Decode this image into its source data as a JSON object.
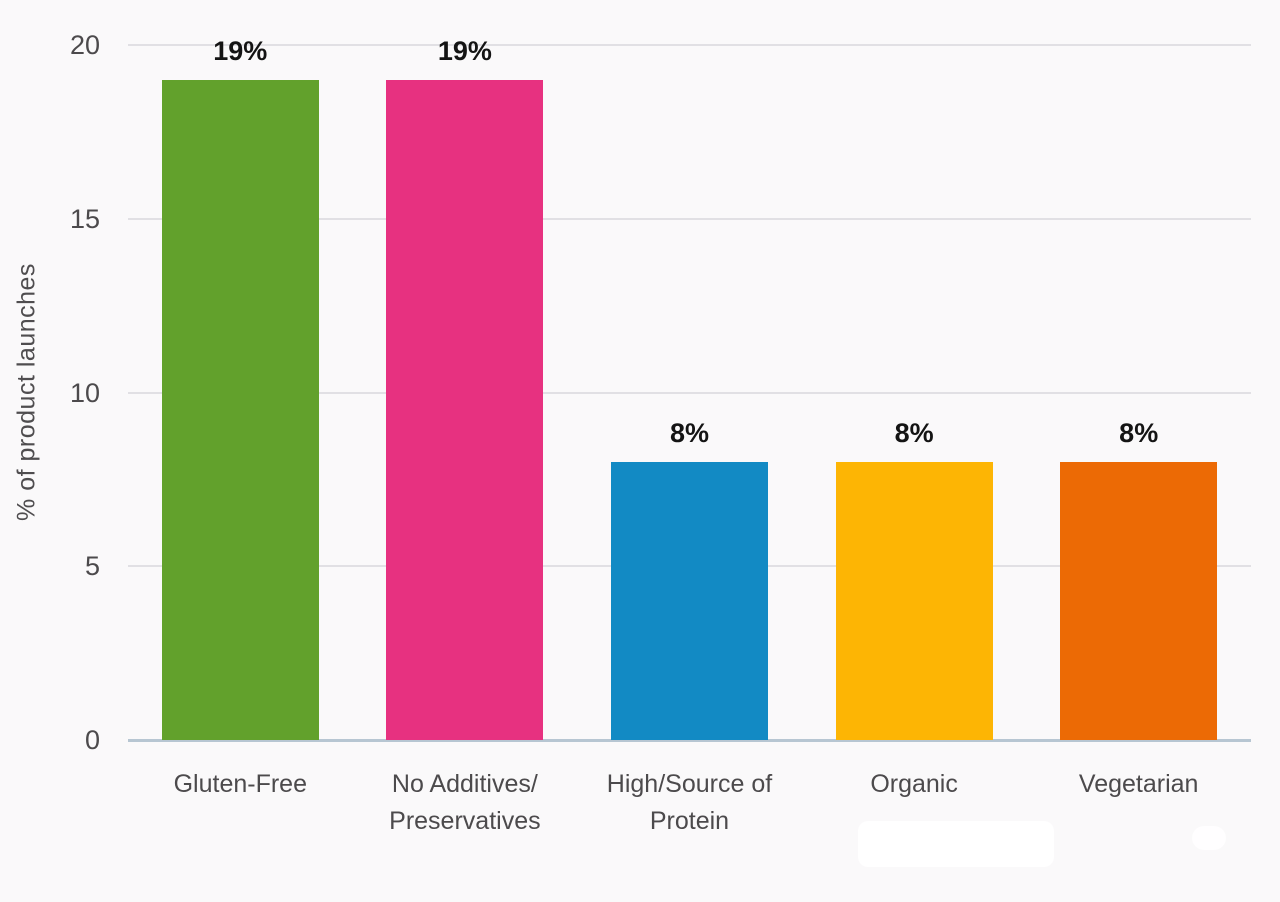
{
  "chart_data": {
    "type": "bar",
    "title": "",
    "xlabel": "",
    "ylabel": "% of product launches",
    "ylim": [
      0,
      20
    ],
    "yticks": [
      0,
      5,
      10,
      15,
      20
    ],
    "grid": true,
    "legend": "none",
    "categories": [
      "Gluten-Free",
      "No Additives/\nPreservatives",
      "High/Source of\nProtein",
      "Organic",
      "Vegetarian"
    ],
    "values": [
      19,
      19,
      8,
      8,
      8
    ],
    "value_labels": [
      "19%",
      "19%",
      "8%",
      "8%",
      "8%"
    ],
    "bar_colors": [
      "#62a12c",
      "#e73180",
      "#128ac4",
      "#fdb504",
      "#ec6a05"
    ]
  },
  "colors": {
    "background": "#faf9fa",
    "gridline": "#e1e0e4",
    "baseline": "#b7c6d2",
    "tick_text": "#4c4a4c",
    "category_text": "#4c4a4c",
    "value_text": "#141414"
  }
}
